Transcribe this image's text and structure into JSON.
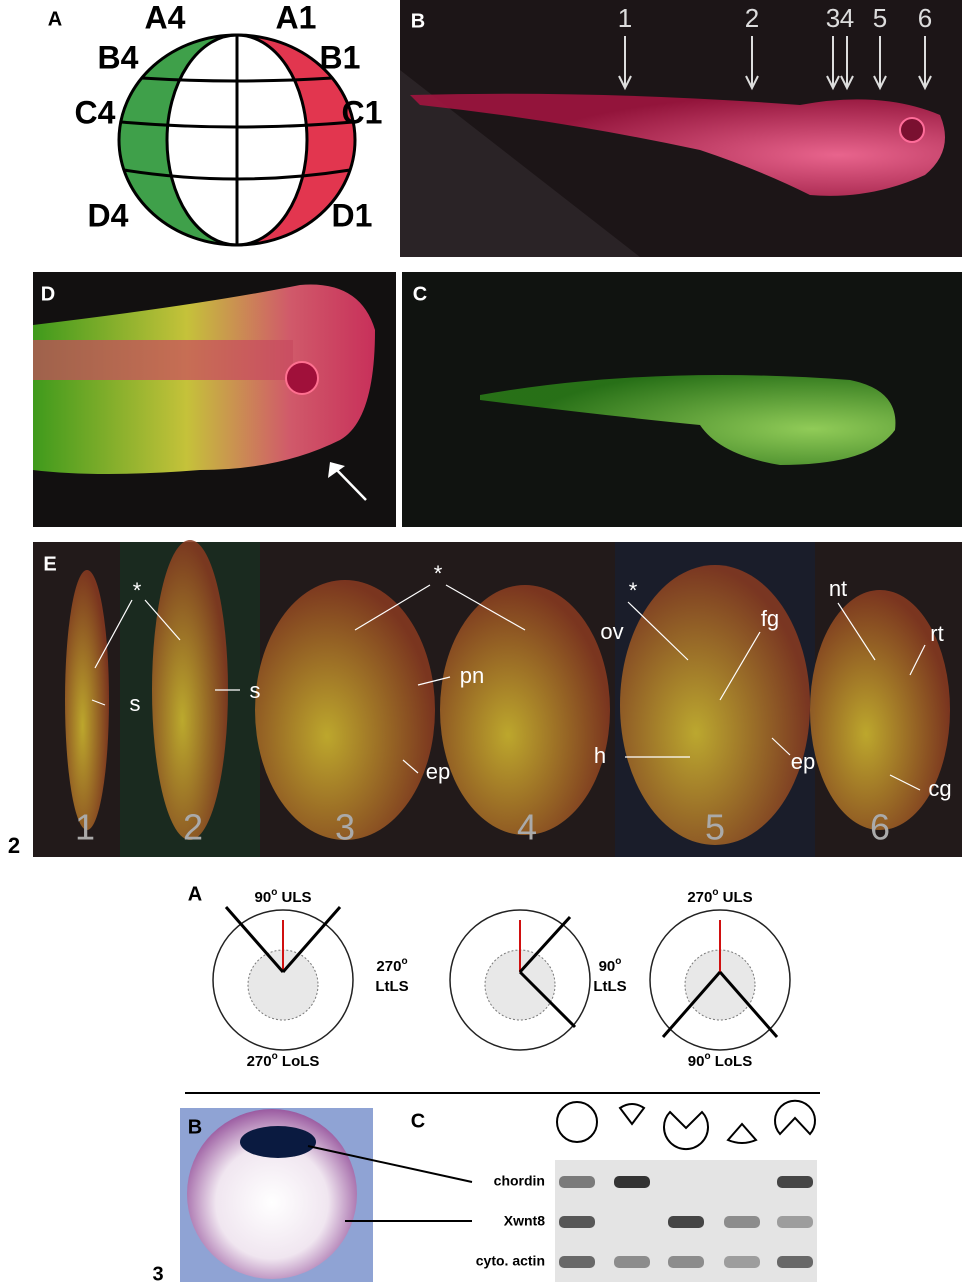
{
  "figure2": {
    "number": "2",
    "panelA": {
      "label": "A",
      "regions": [
        "A4",
        "A1",
        "B4",
        "B1",
        "C4",
        "C1",
        "D4",
        "D1"
      ]
    },
    "panelB": {
      "label": "B",
      "arrows": [
        "1",
        "2",
        "3",
        "4",
        "5",
        "6"
      ]
    },
    "panelD": {
      "label": "D"
    },
    "panelC": {
      "label": "C"
    },
    "panelE": {
      "label": "E",
      "sections": [
        "1",
        "2",
        "3",
        "4",
        "5",
        "6"
      ],
      "annotations": [
        "*",
        "s",
        "s",
        "*",
        "pn",
        "ep",
        "*",
        "ov",
        "fg",
        "h",
        "ep",
        "nt",
        "rt",
        "cg"
      ]
    }
  },
  "figure3": {
    "number": "3",
    "panelA": {
      "label": "A",
      "cuts": [
        {
          "value": "90",
          "sup": "o",
          "name": "ULS"
        },
        {
          "value": "270",
          "sup": "o",
          "name": "LoLS"
        },
        {
          "value": "270",
          "sup": "o",
          "name": "LtLS"
        },
        {
          "value": "90",
          "sup": "o",
          "name": "LtLS"
        },
        {
          "value": "270",
          "sup": "o",
          "name": "ULS"
        },
        {
          "value": "90",
          "sup": "o",
          "name": "LoLS"
        }
      ]
    },
    "panelB": {
      "label": "B"
    },
    "panelC": {
      "label": "C",
      "genes": [
        "chordin",
        "Xwnt8",
        "cyto. actin"
      ]
    }
  }
}
